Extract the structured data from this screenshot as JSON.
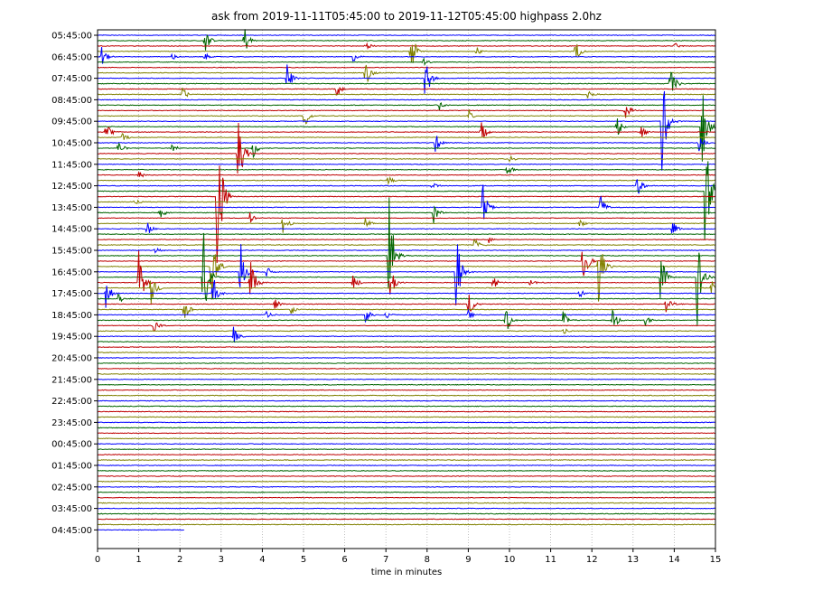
{
  "chart_data": {
    "type": "line",
    "title": "ask from 2019-11-11T05:45:00 to 2019-11-12T05:45:00 highpass 2.0hz",
    "xlabel": "time in minutes",
    "ylabel": "",
    "xlim": [
      0,
      15
    ],
    "x_ticks": [
      "0",
      "1",
      "2",
      "3",
      "4",
      "5",
      "6",
      "7",
      "8",
      "9",
      "10",
      "11",
      "12",
      "13",
      "14",
      "15"
    ],
    "y_tick_labels": [
      "05:45:00",
      "06:45:00",
      "07:45:00",
      "08:45:00",
      "09:45:00",
      "10:45:00",
      "11:45:00",
      "12:45:00",
      "13:45:00",
      "14:45:00",
      "15:45:00",
      "16:45:00",
      "17:45:00",
      "18:45:00",
      "19:45:00",
      "20:45:00",
      "21:45:00",
      "22:45:00",
      "23:45:00",
      "00:45:00",
      "01:45:00",
      "02:45:00",
      "03:45:00",
      "04:45:00"
    ],
    "traces_per_hour": 4,
    "trace_count": 93,
    "last_trace_end_minute": 2.1,
    "grid": "vertical dotted at each minute",
    "series_colors": [
      "#0000ff",
      "#006400",
      "#bf0000",
      "#808000"
    ],
    "color_cycle_note": "",
    "events": [
      {
        "trace": 1,
        "minute": 2.6,
        "amp": 1.3
      },
      {
        "trace": 1,
        "minute": 3.55,
        "amp": 1.8
      },
      {
        "trace": 2,
        "minute": 14.0,
        "amp": 0.4
      },
      {
        "trace": 2,
        "minute": 6.5,
        "amp": 0.5
      },
      {
        "trace": 3,
        "minute": 7.6,
        "amp": 2.5
      },
      {
        "trace": 3,
        "minute": 11.6,
        "amp": 1.2
      },
      {
        "trace": 3,
        "minute": 9.2,
        "amp": 0.5
      },
      {
        "trace": 4,
        "minute": 0.1,
        "amp": 1.0
      },
      {
        "trace": 4,
        "minute": 6.2,
        "amp": 0.6
      },
      {
        "trace": 4,
        "minute": 2.6,
        "amp": 0.4
      },
      {
        "trace": 4,
        "minute": 1.8,
        "amp": 0.4
      },
      {
        "trace": 5,
        "minute": 7.9,
        "amp": 0.4
      },
      {
        "trace": 7,
        "minute": 6.5,
        "amp": 1.6
      },
      {
        "trace": 8,
        "minute": 4.6,
        "amp": 1.6
      },
      {
        "trace": 8,
        "minute": 7.95,
        "amp": 3.0
      },
      {
        "trace": 9,
        "minute": 13.9,
        "amp": 2.0
      },
      {
        "trace": 10,
        "minute": 5.8,
        "amp": 0.9
      },
      {
        "trace": 11,
        "minute": 2.05,
        "amp": 0.8
      },
      {
        "trace": 11,
        "minute": 11.9,
        "amp": 0.5
      },
      {
        "trace": 13,
        "minute": 8.3,
        "amp": 0.5
      },
      {
        "trace": 14,
        "minute": 12.8,
        "amp": 1.3
      },
      {
        "trace": 15,
        "minute": 5.0,
        "amp": 1.6
      },
      {
        "trace": 15,
        "minute": 9.0,
        "amp": 0.8
      },
      {
        "trace": 16,
        "minute": 13.7,
        "amp": 5.5
      },
      {
        "trace": 17,
        "minute": 14.65,
        "amp": 5.5
      },
      {
        "trace": 17,
        "minute": 12.6,
        "amp": 1.3
      },
      {
        "trace": 18,
        "minute": 0.2,
        "amp": 1.2
      },
      {
        "trace": 18,
        "minute": 9.3,
        "amp": 1.3
      },
      {
        "trace": 18,
        "minute": 13.2,
        "amp": 0.6
      },
      {
        "trace": 19,
        "minute": 0.6,
        "amp": 0.5
      },
      {
        "trace": 20,
        "minute": 8.2,
        "amp": 1.0
      },
      {
        "trace": 20,
        "minute": 14.6,
        "amp": 1.0
      },
      {
        "trace": 21,
        "minute": 0.5,
        "amp": 0.8
      },
      {
        "trace": 21,
        "minute": 3.75,
        "amp": 1.3
      },
      {
        "trace": 21,
        "minute": 1.8,
        "amp": 0.5
      },
      {
        "trace": 22,
        "minute": 3.4,
        "amp": 6.0
      },
      {
        "trace": 23,
        "minute": 10.0,
        "amp": 0.4
      },
      {
        "trace": 25,
        "minute": 9.9,
        "amp": 1.2
      },
      {
        "trace": 26,
        "minute": 1.0,
        "amp": 0.4
      },
      {
        "trace": 27,
        "minute": 7.05,
        "amp": 0.6
      },
      {
        "trace": 28,
        "minute": 13.1,
        "amp": 1.3
      },
      {
        "trace": 28,
        "minute": 8.1,
        "amp": 0.5
      },
      {
        "trace": 29,
        "minute": 14.75,
        "amp": 7.0
      },
      {
        "trace": 30,
        "minute": 2.9,
        "amp": 9.0
      },
      {
        "trace": 31,
        "minute": 0.9,
        "amp": 0.4
      },
      {
        "trace": 32,
        "minute": 9.35,
        "amp": 2.5
      },
      {
        "trace": 32,
        "minute": 12.2,
        "amp": 1.3
      },
      {
        "trace": 33,
        "minute": 8.15,
        "amp": 1.3
      },
      {
        "trace": 33,
        "minute": 1.5,
        "amp": 0.9
      },
      {
        "trace": 34,
        "minute": 3.7,
        "amp": 0.6
      },
      {
        "trace": 35,
        "minute": 4.5,
        "amp": 1.2
      },
      {
        "trace": 35,
        "minute": 6.5,
        "amp": 0.6
      },
      {
        "trace": 35,
        "minute": 11.7,
        "amp": 0.5
      },
      {
        "trace": 36,
        "minute": 1.2,
        "amp": 0.8
      },
      {
        "trace": 36,
        "minute": 13.95,
        "amp": 1.3
      },
      {
        "trace": 38,
        "minute": 9.5,
        "amp": 0.4
      },
      {
        "trace": 39,
        "minute": 9.15,
        "amp": 0.8
      },
      {
        "trace": 40,
        "minute": 1.4,
        "amp": 0.4
      },
      {
        "trace": 41,
        "minute": 7.05,
        "amp": 9.0
      },
      {
        "trace": 42,
        "minute": 11.75,
        "amp": 3.5
      },
      {
        "trace": 43,
        "minute": 2.75,
        "amp": 4.5
      },
      {
        "trace": 43,
        "minute": 12.15,
        "amp": 4.5
      },
      {
        "trace": 44,
        "minute": 8.7,
        "amp": 4.5
      },
      {
        "trace": 44,
        "minute": 3.45,
        "amp": 4.0
      },
      {
        "trace": 44,
        "minute": 4.1,
        "amp": 0.6
      },
      {
        "trace": 45,
        "minute": 2.55,
        "amp": 6.5
      },
      {
        "trace": 45,
        "minute": 14.55,
        "amp": 5.0
      },
      {
        "trace": 45,
        "minute": 13.65,
        "amp": 3.5
      },
      {
        "trace": 46,
        "minute": 1.0,
        "amp": 3.0
      },
      {
        "trace": 46,
        "minute": 3.7,
        "amp": 3.5
      },
      {
        "trace": 46,
        "minute": 6.2,
        "amp": 1.0
      },
      {
        "trace": 46,
        "minute": 7.1,
        "amp": 2.0
      },
      {
        "trace": 46,
        "minute": 9.6,
        "amp": 0.8
      },
      {
        "trace": 46,
        "minute": 10.5,
        "amp": 0.5
      },
      {
        "trace": 47,
        "minute": 1.3,
        "amp": 2.0
      },
      {
        "trace": 47,
        "minute": 14.9,
        "amp": 0.8
      },
      {
        "trace": 48,
        "minute": 0.2,
        "amp": 1.5
      },
      {
        "trace": 48,
        "minute": 2.8,
        "amp": 2.0
      },
      {
        "trace": 48,
        "minute": 11.7,
        "amp": 0.5
      },
      {
        "trace": 49,
        "minute": 0.5,
        "amp": 0.5
      },
      {
        "trace": 50,
        "minute": 4.3,
        "amp": 0.6
      },
      {
        "trace": 50,
        "minute": 9.0,
        "amp": 1.5
      },
      {
        "trace": 50,
        "minute": 13.8,
        "amp": 1.2
      },
      {
        "trace": 51,
        "minute": 2.1,
        "amp": 1.3
      },
      {
        "trace": 51,
        "minute": 4.7,
        "amp": 0.6
      },
      {
        "trace": 52,
        "minute": 4.1,
        "amp": 0.6
      },
      {
        "trace": 52,
        "minute": 6.5,
        "amp": 1.1
      },
      {
        "trace": 52,
        "minute": 7.0,
        "amp": 0.5
      },
      {
        "trace": 52,
        "minute": 9.0,
        "amp": 0.5
      },
      {
        "trace": 53,
        "minute": 9.9,
        "amp": 1.8
      },
      {
        "trace": 53,
        "minute": 11.3,
        "amp": 1.0
      },
      {
        "trace": 53,
        "minute": 12.5,
        "amp": 1.3
      },
      {
        "trace": 53,
        "minute": 13.3,
        "amp": 0.8
      },
      {
        "trace": 54,
        "minute": 1.35,
        "amp": 0.9
      },
      {
        "trace": 55,
        "minute": 11.3,
        "amp": 0.4
      },
      {
        "trace": 56,
        "minute": 3.3,
        "amp": 1.0
      }
    ]
  }
}
